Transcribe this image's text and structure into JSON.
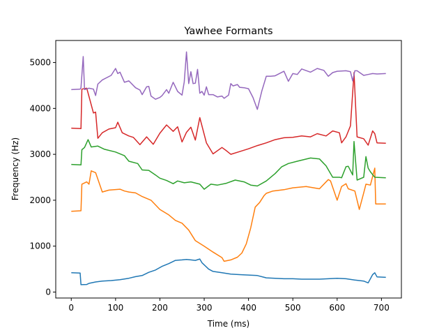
{
  "chart_data": {
    "type": "line",
    "title": "Yawhee Formants",
    "xlabel": "Time (ms)",
    "ylabel": "Frequency (Hz)",
    "xlim": [
      -35,
      745
    ],
    "ylim": [
      -130,
      5480
    ],
    "xticks": [
      0,
      100,
      200,
      300,
      400,
      500,
      600,
      700
    ],
    "yticks": [
      0,
      1000,
      2000,
      3000,
      4000,
      5000
    ],
    "grid": false,
    "series": [
      {
        "color": "#1f77b4",
        "x": [
          0,
          20,
          22,
          35,
          40,
          55,
          70,
          90,
          110,
          130,
          145,
          160,
          175,
          190,
          205,
          220,
          235,
          250,
          260,
          270,
          280,
          290,
          295,
          310,
          320,
          340,
          360,
          380,
          400,
          420,
          440,
          460,
          480,
          500,
          520,
          540,
          560,
          580,
          600,
          620,
          640,
          660,
          670,
          680,
          685,
          690,
          710
        ],
        "y": [
          420,
          415,
          160,
          165,
          190,
          220,
          240,
          250,
          270,
          300,
          335,
          360,
          430,
          480,
          560,
          620,
          690,
          700,
          710,
          700,
          690,
          720,
          640,
          500,
          450,
          420,
          390,
          380,
          370,
          360,
          310,
          300,
          290,
          290,
          280,
          280,
          280,
          290,
          300,
          290,
          260,
          240,
          200,
          380,
          420,
          330,
          320
        ]
      },
      {
        "color": "#ff7f0e",
        "x": [
          0,
          22,
          24,
          35,
          40,
          45,
          55,
          70,
          85,
          110,
          120,
          130,
          145,
          160,
          180,
          200,
          220,
          235,
          250,
          265,
          280,
          300,
          320,
          340,
          345,
          360,
          375,
          385,
          395,
          405,
          415,
          425,
          435,
          440,
          455,
          480,
          500,
          530,
          560,
          580,
          585,
          600,
          610,
          620,
          625,
          640,
          650,
          660,
          665,
          675,
          685,
          687,
          710
        ],
        "y": [
          1760,
          1770,
          2350,
          2400,
          2350,
          2640,
          2600,
          2180,
          2220,
          2240,
          2200,
          2180,
          2160,
          2080,
          2000,
          1800,
          1680,
          1560,
          1500,
          1350,
          1120,
          1000,
          870,
          750,
          670,
          700,
          760,
          850,
          1050,
          1400,
          1850,
          1950,
          2100,
          2150,
          2200,
          2230,
          2270,
          2300,
          2250,
          2450,
          2420,
          2000,
          2300,
          2360,
          2250,
          2200,
          1800,
          2160,
          2350,
          2330,
          2700,
          1920,
          1920
        ]
      },
      {
        "color": "#2ca02c",
        "x": [
          0,
          22,
          24,
          30,
          38,
          45,
          60,
          75,
          100,
          120,
          130,
          150,
          160,
          175,
          190,
          200,
          215,
          230,
          240,
          255,
          270,
          290,
          300,
          315,
          330,
          350,
          370,
          390,
          405,
          420,
          440,
          460,
          475,
          490,
          510,
          540,
          560,
          570,
          575,
          590,
          605,
          610,
          620,
          625,
          635,
          638,
          645,
          660,
          665,
          670,
          675,
          685,
          710
        ],
        "y": [
          2780,
          2770,
          3100,
          3150,
          3320,
          3160,
          3180,
          3110,
          3050,
          2970,
          2850,
          2800,
          2660,
          2650,
          2550,
          2480,
          2430,
          2360,
          2420,
          2380,
          2400,
          2350,
          2240,
          2350,
          2330,
          2370,
          2440,
          2400,
          2330,
          2310,
          2420,
          2580,
          2730,
          2800,
          2850,
          2920,
          2900,
          2800,
          2750,
          2500,
          2500,
          2490,
          2730,
          2740,
          2550,
          3280,
          2440,
          2500,
          2950,
          2700,
          2620,
          2500,
          2490
        ]
      },
      {
        "color": "#d62728",
        "x": [
          0,
          22,
          24,
          35,
          50,
          55,
          60,
          70,
          85,
          100,
          105,
          115,
          130,
          140,
          155,
          170,
          185,
          200,
          215,
          230,
          240,
          250,
          260,
          270,
          280,
          290,
          305,
          320,
          340,
          350,
          360,
          380,
          400,
          420,
          440,
          460,
          480,
          500,
          520,
          540,
          555,
          575,
          590,
          605,
          610,
          620,
          630,
          638,
          645,
          660,
          670,
          680,
          685,
          690,
          710
        ],
        "y": [
          3570,
          3560,
          4420,
          4440,
          3900,
          3920,
          3350,
          3470,
          3550,
          3580,
          3700,
          3470,
          3400,
          3370,
          3210,
          3380,
          3220,
          3460,
          3640,
          3500,
          3600,
          3270,
          3480,
          3590,
          3310,
          3800,
          3250,
          3010,
          3150,
          3080,
          3000,
          3060,
          3120,
          3190,
          3250,
          3320,
          3360,
          3370,
          3400,
          3380,
          3450,
          3400,
          3510,
          3470,
          3250,
          3380,
          3620,
          4780,
          3380,
          3340,
          3200,
          3510,
          3450,
          3250,
          3240
        ]
      },
      {
        "color": "#9467bd",
        "x": [
          0,
          20,
          22,
          27,
          30,
          40,
          50,
          55,
          60,
          70,
          90,
          100,
          105,
          110,
          120,
          130,
          145,
          155,
          160,
          170,
          175,
          180,
          190,
          200,
          205,
          215,
          220,
          230,
          240,
          250,
          255,
          260,
          265,
          270,
          275,
          280,
          285,
          290,
          295,
          300,
          305,
          310,
          320,
          330,
          340,
          345,
          355,
          360,
          365,
          375,
          380,
          390,
          400,
          410,
          420,
          425,
          430,
          440,
          450,
          460,
          480,
          490,
          500,
          510,
          520,
          540,
          555,
          570,
          580,
          590,
          600,
          620,
          630,
          635,
          640,
          645,
          660,
          670,
          680,
          690,
          710
        ],
        "y": [
          4410,
          4420,
          4450,
          5130,
          4410,
          4440,
          4420,
          4280,
          4530,
          4620,
          4720,
          4870,
          4760,
          4790,
          4570,
          4600,
          4450,
          4400,
          4300,
          4470,
          4480,
          4270,
          4200,
          4240,
          4280,
          4410,
          4330,
          4570,
          4370,
          4290,
          4580,
          5230,
          4540,
          4800,
          4540,
          4550,
          4850,
          4330,
          4370,
          4290,
          4470,
          4300,
          4300,
          4250,
          4270,
          4220,
          4290,
          4540,
          4490,
          4520,
          4460,
          4450,
          4430,
          4240,
          3980,
          4180,
          4380,
          4700,
          4700,
          4710,
          4810,
          4590,
          4760,
          4740,
          4860,
          4790,
          4870,
          4830,
          4700,
          4780,
          4810,
          4820,
          4800,
          4600,
          4820,
          4820,
          4720,
          4740,
          4760,
          4750,
          4760
        ]
      }
    ]
  }
}
